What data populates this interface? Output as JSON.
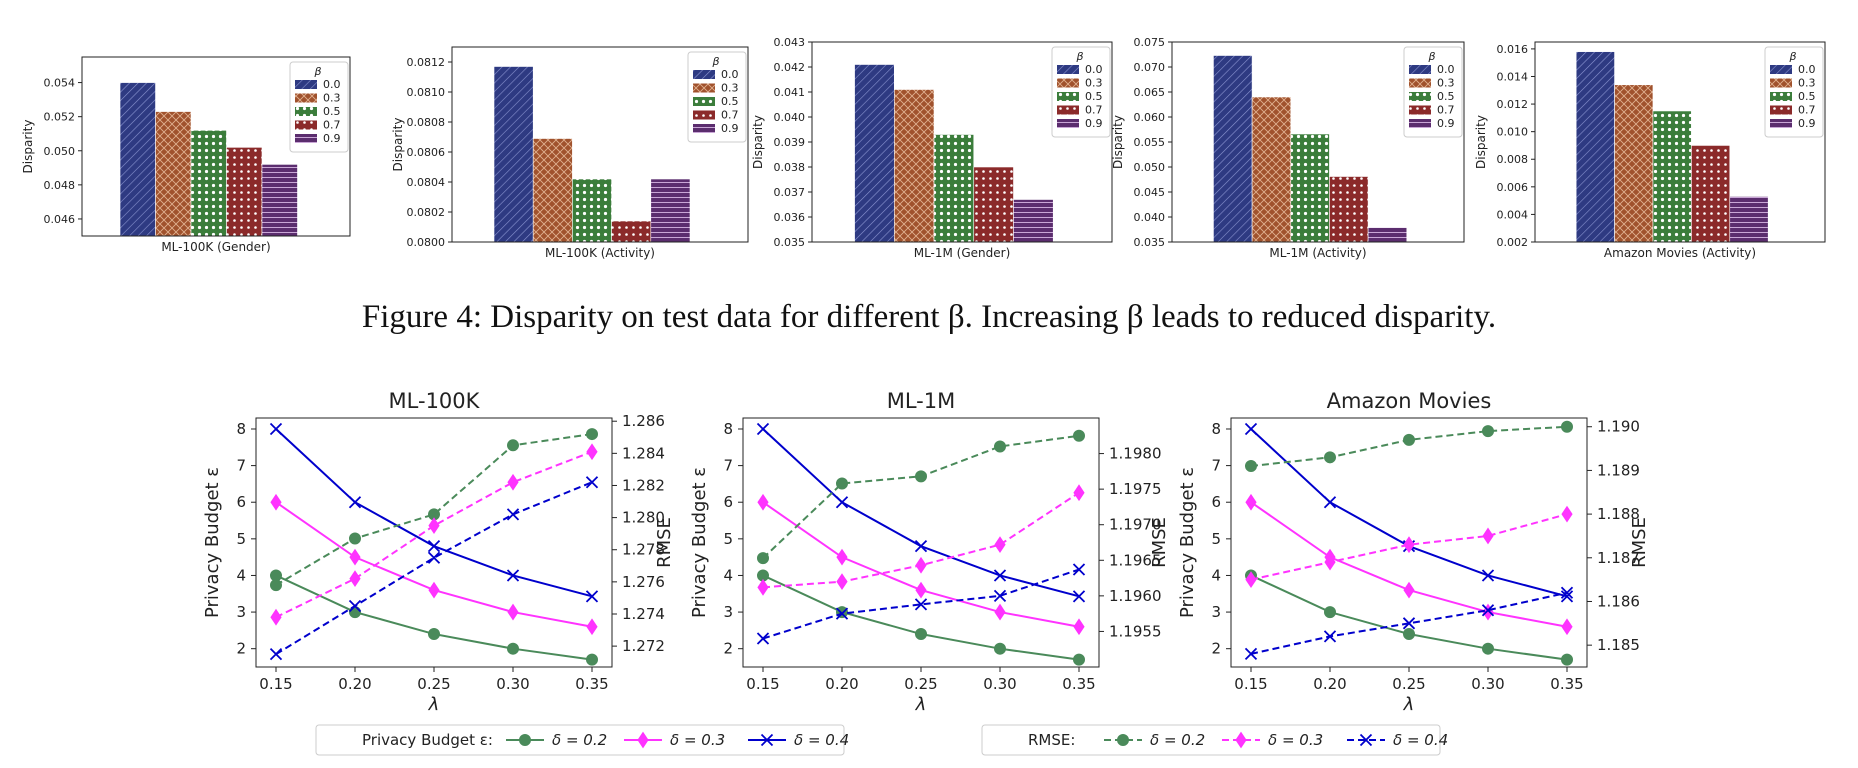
{
  "figure4": {
    "caption": "Figure 4: Disparity on test data for different β. Increasing β leads to reduced disparity.",
    "legend_title": "β",
    "beta_values": [
      "0.0",
      "0.3",
      "0.5",
      "0.7",
      "0.9"
    ],
    "colors": [
      "#2e3a82",
      "#a0522d",
      "#3b7d3b",
      "#8b2a2a",
      "#5b2d6e"
    ]
  },
  "figure5": {
    "legend_privacy_title": "Privacy Budget ε:",
    "legend_rmse_title": "RMSE:",
    "series_names": [
      "δ = 0.2",
      "δ = 0.3",
      "δ = 0.4"
    ],
    "colors": [
      "#4a8a5a",
      "#ff33ff",
      "#0000cc"
    ]
  },
  "chart_data": [
    {
      "type": "bar",
      "title": "",
      "xlabel": "ML-100K (Gender)",
      "ylabel": "Disparity",
      "categories": [
        "0.0",
        "0.3",
        "0.5",
        "0.7",
        "0.9"
      ],
      "values": [
        0.054,
        0.0523,
        0.0512,
        0.0502,
        0.0492
      ],
      "ylim": [
        0.045,
        0.0555
      ],
      "yticks": [
        "0.046",
        "0.048",
        "0.050",
        "0.052",
        "0.054"
      ]
    },
    {
      "type": "bar",
      "title": "",
      "xlabel": "ML-100K (Activity)",
      "ylabel": "Disparity",
      "categories": [
        "0.0",
        "0.3",
        "0.5",
        "0.7",
        "0.9"
      ],
      "values": [
        0.08117,
        0.08069,
        0.08042,
        0.08014,
        0.08042
      ],
      "ylim": [
        0.08,
        0.0813
      ],
      "yticks": [
        "0.0800",
        "0.0802",
        "0.0804",
        "0.0806",
        "0.0808",
        "0.0810",
        "0.0812"
      ]
    },
    {
      "type": "bar",
      "title": "",
      "xlabel": "ML-1M (Gender)",
      "ylabel": "Disparity",
      "categories": [
        "0.0",
        "0.3",
        "0.5",
        "0.7",
        "0.9"
      ],
      "values": [
        0.0421,
        0.0411,
        0.0393,
        0.038,
        0.0367
      ],
      "ylim": [
        0.035,
        0.043
      ],
      "yticks": [
        "0.035",
        "0.036",
        "0.037",
        "0.038",
        "0.039",
        "0.040",
        "0.041",
        "0.042",
        "0.043"
      ]
    },
    {
      "type": "bar",
      "title": "",
      "xlabel": "ML-1M (Activity)",
      "ylabel": "Disparity",
      "categories": [
        "0.0",
        "0.3",
        "0.5",
        "0.7",
        "0.9"
      ],
      "values": [
        0.0723,
        0.064,
        0.0566,
        0.0481,
        0.0379
      ],
      "ylim": [
        0.035,
        0.075
      ],
      "yticks": [
        "0.035",
        "0.040",
        "0.045",
        "0.050",
        "0.055",
        "0.060",
        "0.065",
        "0.070",
        "0.075"
      ]
    },
    {
      "type": "bar",
      "title": "",
      "xlabel": "Amazon Movies (Activity)",
      "ylabel": "Disparity",
      "categories": [
        "0.0",
        "0.3",
        "0.5",
        "0.7",
        "0.9"
      ],
      "values": [
        0.0158,
        0.0134,
        0.0115,
        0.009,
        0.0053
      ],
      "ylim": [
        0.002,
        0.0165
      ],
      "yticks": [
        "0.002",
        "0.004",
        "0.006",
        "0.008",
        "0.010",
        "0.012",
        "0.014",
        "0.016"
      ]
    },
    {
      "type": "line",
      "title": "ML-100K",
      "xlabel": "λ",
      "ylabel": "Privacy Budget ε",
      "y2label": "RMSE",
      "x": [
        0.15,
        0.2,
        0.25,
        0.3,
        0.35
      ],
      "xticks": [
        "0.15",
        "0.20",
        "0.25",
        "0.30",
        "0.35"
      ],
      "ylim": [
        1.5,
        8.3
      ],
      "yticks": [
        "2",
        "3",
        "4",
        "5",
        "6",
        "7",
        "8"
      ],
      "y2lim": [
        1.2707,
        1.2862
      ],
      "y2ticks": [
        "1.272",
        "1.274",
        "1.276",
        "1.278",
        "1.280",
        "1.282",
        "1.284",
        "1.286"
      ],
      "series": [
        {
          "name": "Privacy Budget ε: δ = 0.2",
          "axis": "left",
          "style": "solid",
          "values": [
            4.0,
            3.0,
            2.4,
            2.0,
            1.7
          ]
        },
        {
          "name": "Privacy Budget ε: δ = 0.3",
          "axis": "left",
          "style": "solid",
          "values": [
            6.0,
            4.5,
            3.6,
            3.0,
            2.6
          ]
        },
        {
          "name": "Privacy Budget ε: δ = 0.4",
          "axis": "left",
          "style": "solid",
          "values": [
            8.0,
            6.0,
            4.8,
            4.0,
            3.43
          ]
        },
        {
          "name": "RMSE: δ = 0.2",
          "axis": "right",
          "style": "dashed",
          "values": [
            1.2758,
            1.2787,
            1.2802,
            1.2845,
            1.2852
          ]
        },
        {
          "name": "RMSE: δ = 0.3",
          "axis": "right",
          "style": "dashed",
          "values": [
            1.2738,
            1.2762,
            1.2795,
            1.2822,
            1.2841
          ]
        },
        {
          "name": "RMSE: δ = 0.4",
          "axis": "right",
          "style": "dashed",
          "values": [
            1.2715,
            1.2745,
            1.2775,
            1.2802,
            1.2822
          ]
        }
      ]
    },
    {
      "type": "line",
      "title": "ML-1M",
      "xlabel": "λ",
      "ylabel": "Privacy Budget ε",
      "y2label": "RMSE",
      "x": [
        0.15,
        0.2,
        0.25,
        0.3,
        0.35
      ],
      "xticks": [
        "0.15",
        "0.20",
        "0.25",
        "0.30",
        "0.35"
      ],
      "ylim": [
        1.5,
        8.3
      ],
      "yticks": [
        "2",
        "3",
        "4",
        "5",
        "6",
        "7",
        "8"
      ],
      "y2lim": [
        1.195,
        1.1985
      ],
      "y2ticks": [
        "1.1955",
        "1.1960",
        "1.1965",
        "1.1970",
        "1.1975",
        "1.1980"
      ],
      "series": [
        {
          "name": "Privacy Budget ε: δ = 0.2",
          "axis": "left",
          "style": "solid",
          "values": [
            4.0,
            3.0,
            2.4,
            2.0,
            1.7
          ]
        },
        {
          "name": "Privacy Budget ε: δ = 0.3",
          "axis": "left",
          "style": "solid",
          "values": [
            6.0,
            4.5,
            3.6,
            3.0,
            2.6
          ]
        },
        {
          "name": "Privacy Budget ε: δ = 0.4",
          "axis": "left",
          "style": "solid",
          "values": [
            8.0,
            6.0,
            4.8,
            4.0,
            3.43
          ]
        },
        {
          "name": "RMSE: δ = 0.2",
          "axis": "right",
          "style": "dashed",
          "values": [
            1.19653,
            1.19758,
            1.19768,
            1.1981,
            1.19825
          ]
        },
        {
          "name": "RMSE: δ = 0.3",
          "axis": "right",
          "style": "dashed",
          "values": [
            1.19612,
            1.1962,
            1.19643,
            1.19672,
            1.19745
          ]
        },
        {
          "name": "RMSE: δ = 0.4",
          "axis": "right",
          "style": "dashed",
          "values": [
            1.1954,
            1.19575,
            1.19588,
            1.196,
            1.19637
          ]
        }
      ]
    },
    {
      "type": "line",
      "title": "Amazon Movies",
      "xlabel": "λ",
      "ylabel": "Privacy Budget ε",
      "y2label": "RMSE",
      "x": [
        0.15,
        0.2,
        0.25,
        0.3,
        0.35
      ],
      "xticks": [
        "0.15",
        "0.20",
        "0.25",
        "0.30",
        "0.35"
      ],
      "ylim": [
        1.5,
        8.3
      ],
      "yticks": [
        "2",
        "3",
        "4",
        "5",
        "6",
        "7",
        "8"
      ],
      "y2lim": [
        1.1845,
        1.1902
      ],
      "y2ticks": [
        "1.185",
        "1.186",
        "1.187",
        "1.188",
        "1.189",
        "1.190"
      ],
      "series": [
        {
          "name": "Privacy Budget ε: δ = 0.2",
          "axis": "left",
          "style": "solid",
          "values": [
            4.0,
            3.0,
            2.4,
            2.0,
            1.7
          ]
        },
        {
          "name": "Privacy Budget ε: δ = 0.3",
          "axis": "left",
          "style": "solid",
          "values": [
            6.0,
            4.5,
            3.6,
            3.0,
            2.6
          ]
        },
        {
          "name": "Privacy Budget ε: δ = 0.4",
          "axis": "left",
          "style": "solid",
          "values": [
            8.0,
            6.0,
            4.8,
            4.0,
            3.43
          ]
        },
        {
          "name": "RMSE: δ = 0.2",
          "axis": "right",
          "style": "dashed",
          "values": [
            1.1891,
            1.1893,
            1.1897,
            1.1899,
            1.19
          ]
        },
        {
          "name": "RMSE: δ = 0.3",
          "axis": "right",
          "style": "dashed",
          "values": [
            1.1865,
            1.1869,
            1.1873,
            1.1875,
            1.188
          ]
        },
        {
          "name": "RMSE: δ = 0.4",
          "axis": "right",
          "style": "dashed",
          "values": [
            1.1848,
            1.1852,
            1.1855,
            1.1858,
            1.1862
          ]
        }
      ]
    }
  ]
}
